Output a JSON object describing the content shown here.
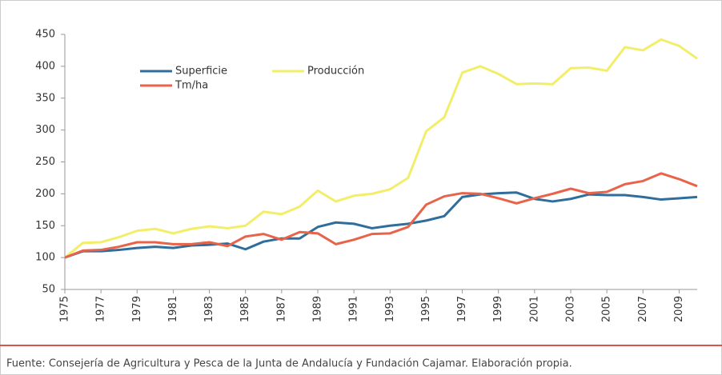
{
  "chart_data": {
    "type": "line",
    "source": "Fuente: Consejería de Agricultura y Pesca de la Junta de Andalucía y Fundación Cajamar. Elaboración propia.",
    "x": [
      1975,
      1976,
      1977,
      1978,
      1979,
      1980,
      1981,
      1982,
      1983,
      1984,
      1985,
      1986,
      1987,
      1988,
      1989,
      1990,
      1991,
      1992,
      1993,
      1994,
      1995,
      1996,
      1997,
      1998,
      1999,
      2000,
      2001,
      2002,
      2003,
      2004,
      2005,
      2006,
      2007,
      2008,
      2009,
      2010
    ],
    "xlim": [
      1975,
      2010
    ],
    "xticks": [
      1975,
      1977,
      1979,
      1981,
      1983,
      1985,
      1987,
      1989,
      1991,
      1993,
      1995,
      1997,
      1999,
      2001,
      2003,
      2005,
      2007,
      2009
    ],
    "ylim": [
      50,
      450
    ],
    "yticks": [
      50,
      100,
      150,
      200,
      250,
      300,
      350,
      400,
      450
    ],
    "grid": false,
    "series": [
      {
        "name": "Superficie",
        "color": "#2f6e9c",
        "values": [
          100,
          110,
          110,
          112,
          115,
          117,
          115,
          119,
          120,
          122,
          113,
          125,
          130,
          130,
          148,
          155,
          153,
          146,
          150,
          153,
          158,
          165,
          195,
          199,
          201,
          202,
          192,
          188,
          192,
          199,
          198,
          198,
          195,
          191,
          193,
          195
        ]
      },
      {
        "name": "Producción",
        "color": "#f2ee6a",
        "values": [
          100,
          123,
          124,
          132,
          142,
          145,
          138,
          145,
          149,
          146,
          150,
          172,
          168,
          180,
          205,
          188,
          197,
          200,
          207,
          225,
          298,
          320,
          390,
          400,
          388,
          372,
          373,
          372,
          397,
          398,
          393,
          430,
          425,
          442,
          432,
          412
        ]
      },
      {
        "name": "Tm/ha",
        "color": "#e8634a",
        "values": [
          100,
          111,
          112,
          117,
          124,
          124,
          121,
          121,
          124,
          118,
          133,
          137,
          128,
          140,
          138,
          121,
          128,
          137,
          138,
          148,
          183,
          196,
          201,
          200,
          193,
          185,
          193,
          200,
          208,
          201,
          203,
          215,
          220,
          232,
          223,
          212
        ]
      }
    ]
  }
}
